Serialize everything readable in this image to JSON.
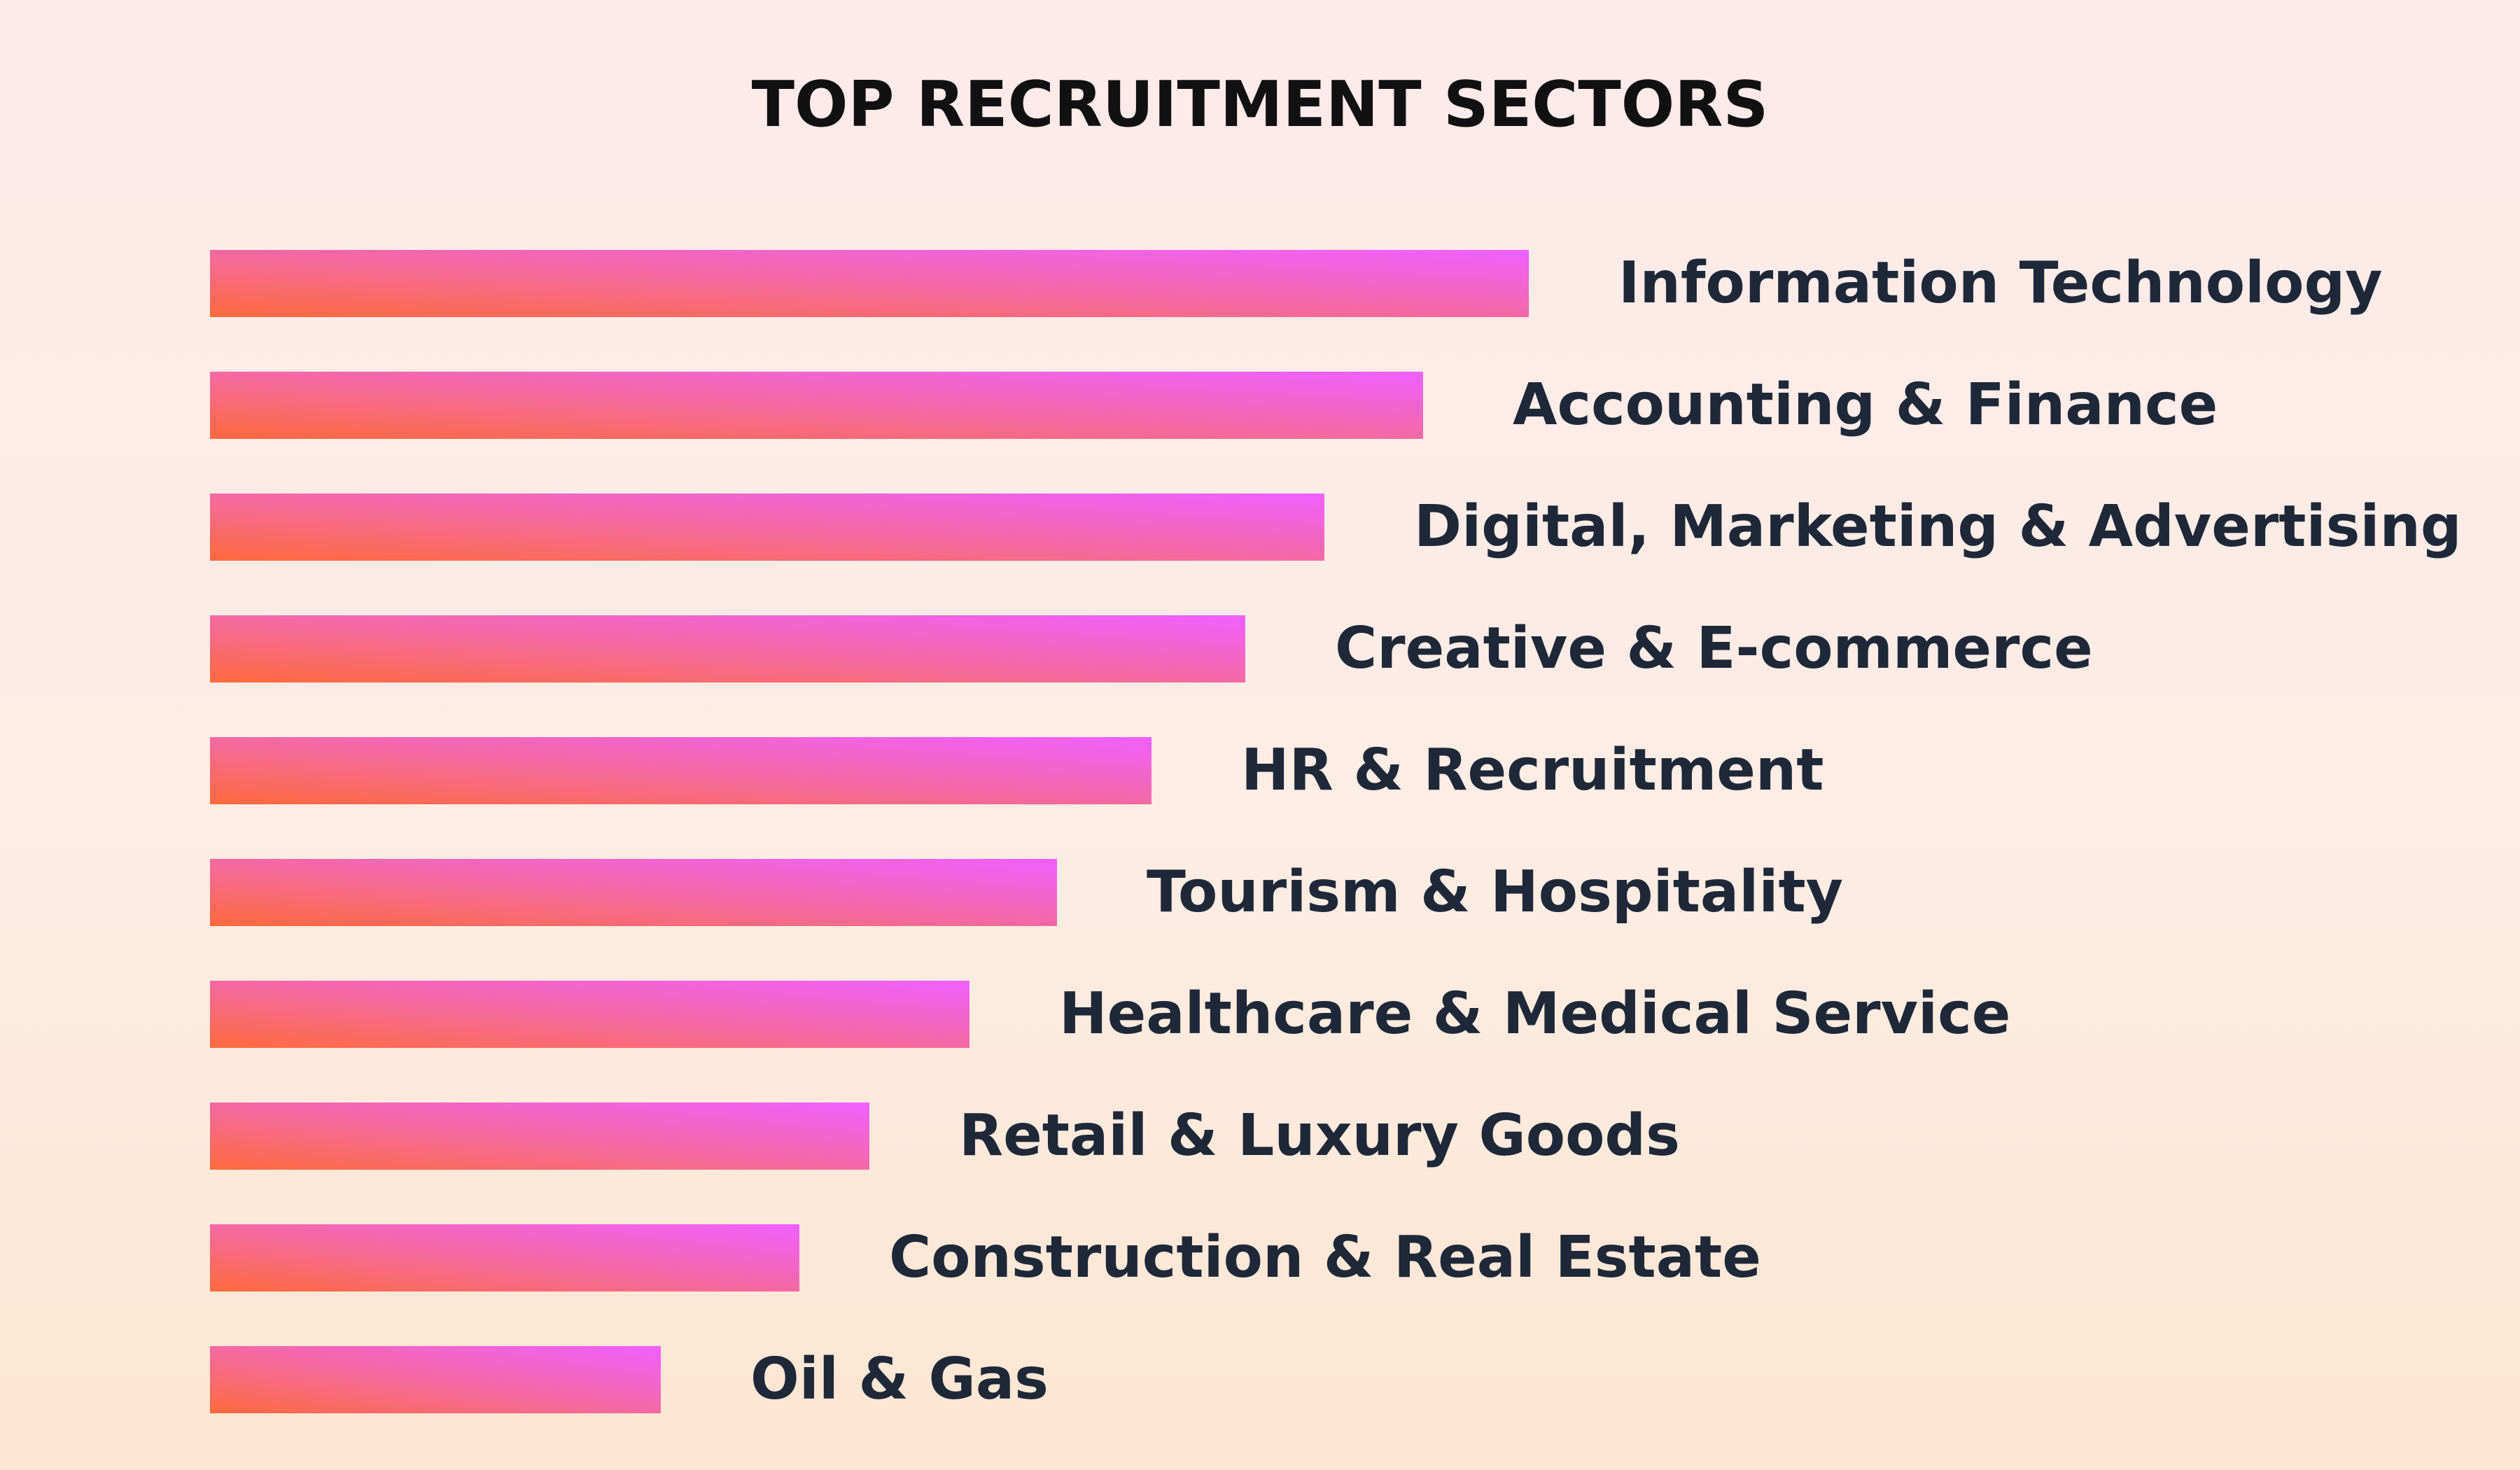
{
  "chart_data": {
    "type": "bar",
    "orientation": "horizontal",
    "title": "TOP RECRUITMENT SECTORS",
    "categories": [
      "Information Technology",
      "Accounting & Finance",
      "Digital, Marketing & Advertising",
      "Creative & E-commerce",
      "HR & Recruitment",
      "Tourism & Hospitality",
      "Healthcare & Medical Service",
      "Retail & Luxury Goods",
      "Construction & Real Estate",
      "Oil & Gas"
    ],
    "values": [
      100,
      92,
      84.5,
      78.5,
      71.4,
      64.2,
      57.6,
      50,
      44.7,
      34.2
    ],
    "legend": "none",
    "grid": false,
    "axes_visible": false
  },
  "colors": {
    "bar_start": "#ff6a3d",
    "bar_end": "#f060ff",
    "label_text": "#1e2838",
    "title_text": "#111111"
  }
}
